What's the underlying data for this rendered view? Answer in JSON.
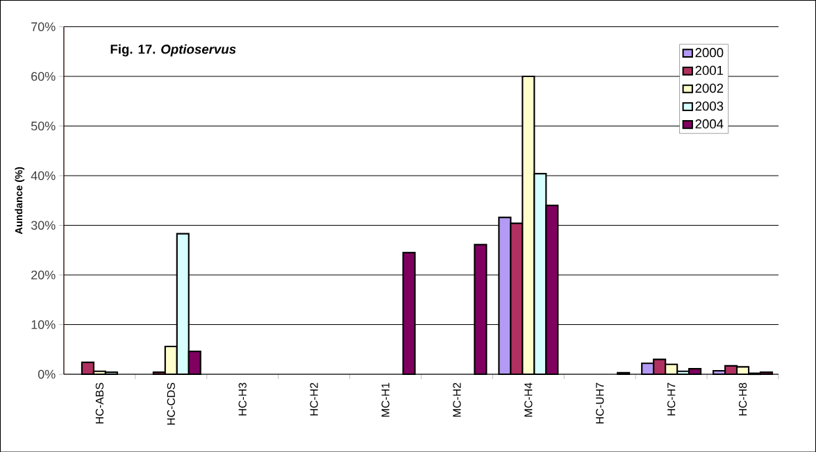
{
  "chart_data": {
    "type": "bar",
    "title": "Fig. 17. *Optioservus*",
    "ylabel": "Aundance (%)",
    "categories": [
      "HC-ABS",
      "HC-CDS",
      "HC-H3",
      "HC-H2",
      "MC-H1",
      "MC-H2",
      "MC-H4",
      "HC-UH7",
      "HC-H7",
      "HC-H8"
    ],
    "series": [
      {
        "name": "2000",
        "color": "#b39af5",
        "values": [
          null,
          null,
          null,
          null,
          null,
          null,
          31.6,
          null,
          2.2,
          0.7
        ]
      },
      {
        "name": "2001",
        "color": "#b03060",
        "values": [
          2.4,
          0.4,
          null,
          null,
          null,
          null,
          30.4,
          null,
          3.0,
          1.7
        ]
      },
      {
        "name": "2002",
        "color": "#ffffcc",
        "values": [
          0.6,
          5.6,
          null,
          null,
          null,
          null,
          60.0,
          null,
          2.0,
          1.5
        ]
      },
      {
        "name": "2003",
        "color": "#d6ffff",
        "values": [
          0.4,
          28.3,
          null,
          null,
          null,
          null,
          40.4,
          null,
          0.6,
          0.2
        ]
      },
      {
        "name": "2004",
        "color": "#800060",
        "values": [
          null,
          4.6,
          null,
          null,
          24.5,
          26.1,
          34.0,
          0.3,
          1.1,
          0.4
        ]
      }
    ],
    "ylim": [
      0,
      70
    ],
    "yticks": [
      {
        "value": 0,
        "label": "0%"
      },
      {
        "value": 10,
        "label": "10%"
      },
      {
        "value": 20,
        "label": "20%"
      },
      {
        "value": 30,
        "label": "30%"
      },
      {
        "value": 40,
        "label": "40%"
      },
      {
        "value": 50,
        "label": "50%"
      },
      {
        "value": 60,
        "label": "60%"
      },
      {
        "value": 70,
        "label": "70%"
      }
    ],
    "grid": "y",
    "legend": "top right"
  }
}
